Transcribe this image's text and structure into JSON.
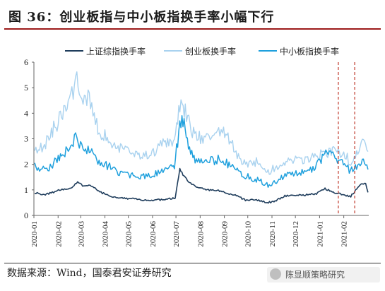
{
  "title": "图 36：创业板指与中小板指换手率小幅下行",
  "source": "数据来源：Wind，国泰君安证券研究",
  "watermark": "陈显顺策略研究",
  "colors": {
    "title_rule": "#9c1a1a",
    "series_main": "#1f3d5c",
    "series_chinext": "#a9d2ef",
    "series_sme": "#1fa0dd",
    "vline": "#c0392b"
  },
  "chart_data": {
    "type": "line",
    "ylim": [
      0,
      6
    ],
    "yticks": [
      "0",
      "1",
      "2",
      "3",
      "4",
      "5",
      "6"
    ],
    "xticks": [
      "2020-01",
      "2020-02",
      "2020-03",
      "2020-04",
      "2020-05",
      "2020-06",
      "2020-07",
      "2020-08",
      "2020-09",
      "2020-10",
      "2020-11",
      "2020-12",
      "2021-01",
      "2021-02"
    ],
    "xlim": [
      "2020-01-01",
      "2021-03-05"
    ],
    "grid": "none",
    "legend": "top",
    "vlines": [
      "2021-01-25",
      "2021-02-15"
    ],
    "series": [
      {
        "name": "上证综指换手率",
        "color": "#1f3d5c",
        "width": 1.6,
        "points": [
          [
            "2020-01-02",
            0.9
          ],
          [
            "2020-01-10",
            0.8
          ],
          [
            "2020-01-20",
            0.85
          ],
          [
            "2020-02-03",
            1.0
          ],
          [
            "2020-02-17",
            1.05
          ],
          [
            "2020-02-26",
            1.3
          ],
          [
            "2020-03-05",
            1.15
          ],
          [
            "2020-03-13",
            1.2
          ],
          [
            "2020-03-24",
            0.95
          ],
          [
            "2020-04-07",
            0.75
          ],
          [
            "2020-04-20",
            0.7
          ],
          [
            "2020-05-06",
            0.65
          ],
          [
            "2020-05-20",
            0.6
          ],
          [
            "2020-06-03",
            0.6
          ],
          [
            "2020-06-17",
            0.62
          ],
          [
            "2020-06-30",
            0.68
          ],
          [
            "2020-07-06",
            1.8
          ],
          [
            "2020-07-10",
            1.6
          ],
          [
            "2020-07-17",
            1.3
          ],
          [
            "2020-07-27",
            1.1
          ],
          [
            "2020-08-10",
            1.0
          ],
          [
            "2020-08-20",
            1.0
          ],
          [
            "2020-09-01",
            0.9
          ],
          [
            "2020-09-15",
            0.8
          ],
          [
            "2020-09-28",
            0.6
          ],
          [
            "2020-10-12",
            0.6
          ],
          [
            "2020-10-26",
            0.5
          ],
          [
            "2020-11-05",
            0.55
          ],
          [
            "2020-11-16",
            0.75
          ],
          [
            "2020-11-30",
            0.8
          ],
          [
            "2020-12-14",
            0.8
          ],
          [
            "2020-12-28",
            0.85
          ],
          [
            "2021-01-08",
            1.05
          ],
          [
            "2021-01-20",
            0.9
          ],
          [
            "2021-02-01",
            0.8
          ],
          [
            "2021-02-10",
            0.75
          ],
          [
            "2021-02-22",
            1.2
          ],
          [
            "2021-03-01",
            1.25
          ],
          [
            "2021-03-04",
            0.9
          ]
        ]
      },
      {
        "name": "创业板换手率",
        "color": "#a9d2ef",
        "width": 1.4,
        "points": [
          [
            "2020-01-02",
            2.7
          ],
          [
            "2020-01-13",
            2.6
          ],
          [
            "2020-01-22",
            3.2
          ],
          [
            "2020-02-04",
            3.8
          ],
          [
            "2020-02-14",
            4.4
          ],
          [
            "2020-02-25",
            5.3
          ],
          [
            "2020-03-04",
            4.4
          ],
          [
            "2020-03-12",
            4.6
          ],
          [
            "2020-03-23",
            3.4
          ],
          [
            "2020-04-07",
            2.9
          ],
          [
            "2020-04-21",
            2.6
          ],
          [
            "2020-05-06",
            2.4
          ],
          [
            "2020-05-19",
            2.3
          ],
          [
            "2020-06-02",
            2.5
          ],
          [
            "2020-06-16",
            2.8
          ],
          [
            "2020-06-29",
            3.0
          ],
          [
            "2020-07-06",
            4.3
          ],
          [
            "2020-07-13",
            4.1
          ],
          [
            "2020-07-22",
            3.3
          ],
          [
            "2020-08-03",
            3.0
          ],
          [
            "2020-08-17",
            3.1
          ],
          [
            "2020-08-31",
            3.3
          ],
          [
            "2020-09-10",
            2.8
          ],
          [
            "2020-09-25",
            2.0
          ],
          [
            "2020-10-12",
            2.1
          ],
          [
            "2020-10-27",
            1.7
          ],
          [
            "2020-11-10",
            2.0
          ],
          [
            "2020-11-25",
            2.1
          ],
          [
            "2020-12-09",
            2.2
          ],
          [
            "2020-12-23",
            2.3
          ],
          [
            "2021-01-07",
            2.4
          ],
          [
            "2021-01-19",
            2.6
          ],
          [
            "2021-02-01",
            2.4
          ],
          [
            "2021-02-10",
            2.1
          ],
          [
            "2021-02-22",
            2.7
          ],
          [
            "2021-03-01",
            2.9
          ],
          [
            "2021-03-04",
            2.5
          ]
        ]
      },
      {
        "name": "中小板指换手率",
        "color": "#1fa0dd",
        "width": 1.5,
        "points": [
          [
            "2020-01-02",
            1.9
          ],
          [
            "2020-01-13",
            1.8
          ],
          [
            "2020-01-22",
            1.9
          ],
          [
            "2020-02-04",
            2.3
          ],
          [
            "2020-02-14",
            2.6
          ],
          [
            "2020-02-25",
            3.1
          ],
          [
            "2020-03-04",
            2.5
          ],
          [
            "2020-03-12",
            2.6
          ],
          [
            "2020-03-23",
            2.1
          ],
          [
            "2020-04-07",
            1.9
          ],
          [
            "2020-04-21",
            1.6
          ],
          [
            "2020-05-06",
            1.6
          ],
          [
            "2020-05-19",
            1.5
          ],
          [
            "2020-06-02",
            1.6
          ],
          [
            "2020-06-16",
            1.7
          ],
          [
            "2020-06-29",
            1.9
          ],
          [
            "2020-07-06",
            3.6
          ],
          [
            "2020-07-10",
            3.8
          ],
          [
            "2020-07-17",
            2.6
          ],
          [
            "2020-07-27",
            2.1
          ],
          [
            "2020-08-10",
            2.1
          ],
          [
            "2020-08-24",
            2.2
          ],
          [
            "2020-09-07",
            2.0
          ],
          [
            "2020-09-22",
            1.6
          ],
          [
            "2020-10-12",
            1.4
          ],
          [
            "2020-10-27",
            1.2
          ],
          [
            "2020-11-10",
            1.4
          ],
          [
            "2020-11-24",
            1.6
          ],
          [
            "2020-12-08",
            1.7
          ],
          [
            "2020-12-22",
            1.8
          ],
          [
            "2021-01-06",
            2.3
          ],
          [
            "2021-01-15",
            2.5
          ],
          [
            "2021-01-27",
            2.1
          ],
          [
            "2021-02-08",
            1.8
          ],
          [
            "2021-02-22",
            2.0
          ],
          [
            "2021-03-01",
            2.1
          ],
          [
            "2021-03-04",
            1.8
          ]
        ]
      }
    ]
  }
}
